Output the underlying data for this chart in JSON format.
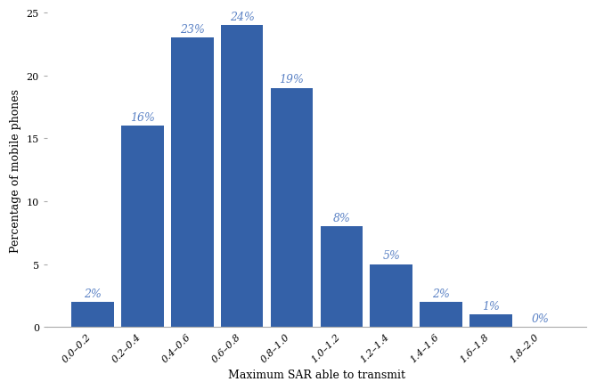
{
  "categories": [
    "0.0–0.2",
    "0.2–0.4",
    "0.4–0.6",
    "0.6–0.8",
    "0.8–1.0",
    "1.0–1.2",
    "1.2–1.4",
    "1.4–1.6",
    "1.6–1.8",
    "1.8–2.0"
  ],
  "values": [
    2,
    16,
    23,
    24,
    19,
    8,
    5,
    2,
    1,
    0
  ],
  "bar_color": "#3461a8",
  "label_color": "#5b82c5",
  "ylabel": "Percentage of mobile phones",
  "xlabel": "Maximum SAR able to transmit",
  "ylim": [
    0,
    25
  ],
  "yticks": [
    0,
    5,
    10,
    15,
    20,
    25
  ],
  "bar_width": 0.85,
  "figsize": [
    6.69,
    4.39
  ],
  "dpi": 100,
  "label_fontsize": 9,
  "tick_fontsize": 8,
  "annotation_fontsize": 9
}
